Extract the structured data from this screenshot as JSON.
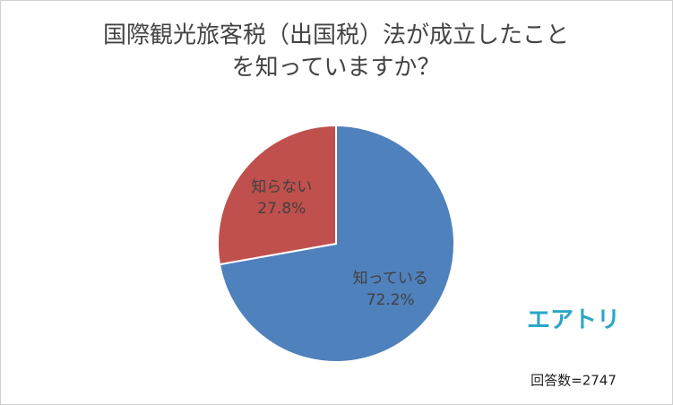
{
  "chart_data": {
    "type": "pie",
    "title": [
      "国際観光旅客税（出国税）法が成立したこと",
      "を知っていますか？"
    ],
    "categories": [
      "知っている",
      "知らない"
    ],
    "values": [
      72.2,
      27.8
    ],
    "value_labels": [
      "72.2%",
      "27.8%"
    ],
    "colors": [
      "#4f81bd",
      "#c0504d"
    ],
    "logo": "エアトリ",
    "note": "回答数=2747"
  }
}
